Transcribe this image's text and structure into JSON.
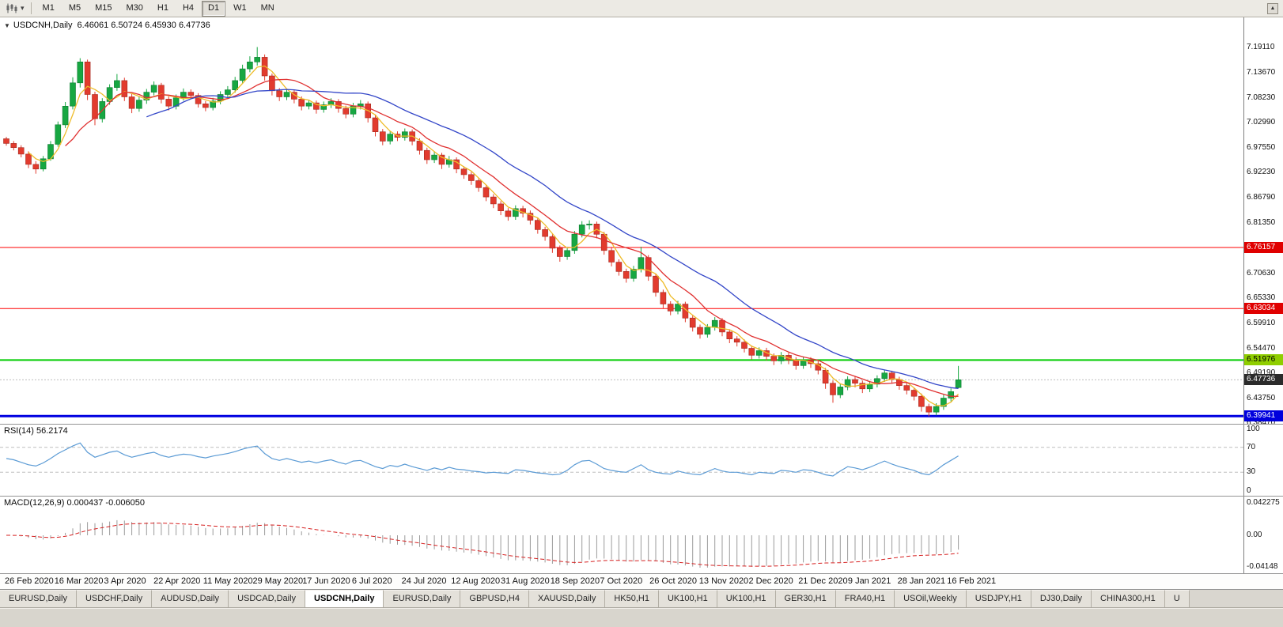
{
  "toolbar": {
    "chart_icon": "candlestick-chart",
    "caret": "▾",
    "timeframes": [
      "M1",
      "M5",
      "M15",
      "M30",
      "H1",
      "H4",
      "D1",
      "W1",
      "MN"
    ],
    "active_timeframe": "D1",
    "mini_button_glyph": "▲"
  },
  "chart_header": {
    "caret": "▼",
    "symbol": "USDCNH,Daily",
    "ohlc": "6.46061 6.50724 6.45930 6.47736"
  },
  "price_axis": {
    "labels": [
      {
        "text": "7.19110",
        "value": 7.1911
      },
      {
        "text": "7.13670",
        "value": 7.1367
      },
      {
        "text": "7.08230",
        "value": 7.0823
      },
      {
        "text": "7.02990",
        "value": 7.0299
      },
      {
        "text": "6.97550",
        "value": 6.9755
      },
      {
        "text": "6.92230",
        "value": 6.9223
      },
      {
        "text": "6.86790",
        "value": 6.8679
      },
      {
        "text": "6.81350",
        "value": 6.8135
      },
      {
        "text": "6.70630",
        "value": 6.7063
      },
      {
        "text": "6.65330",
        "value": 6.6533
      },
      {
        "text": "6.59910",
        "value": 6.5991
      },
      {
        "text": "6.54470",
        "value": 6.5447
      },
      {
        "text": "6.49190",
        "value": 6.4919
      },
      {
        "text": "6.43750",
        "value": 6.4375
      },
      {
        "text": "6.38470",
        "value": 6.3847
      }
    ],
    "tags": [
      {
        "text": "6.76157",
        "value": 6.76157,
        "bg": "#e00000",
        "fg": "#ffffff"
      },
      {
        "text": "6.63034",
        "value": 6.63034,
        "bg": "#e00000",
        "fg": "#ffffff"
      },
      {
        "text": "6.51976",
        "value": 6.51976,
        "bg": "#8fce00",
        "fg": "#000000"
      },
      {
        "text": "6.47736",
        "value": 6.47736,
        "bg": "#2b2b2b",
        "fg": "#ffffff"
      },
      {
        "text": "6.39941",
        "value": 6.39941,
        "bg": "#0000dd",
        "fg": "#ffffff"
      }
    ]
  },
  "rsi_panel": {
    "label": "RSI(14) 56.2174",
    "axis": [
      {
        "text": "100",
        "value": 100
      },
      {
        "text": "70",
        "value": 70
      },
      {
        "text": "30",
        "value": 30
      },
      {
        "text": "0",
        "value": 0
      }
    ]
  },
  "macd_panel": {
    "label": "MACD(12,26,9) 0.000437 -0.006050",
    "axis_labels": [
      {
        "text": "0.042275",
        "role": "max"
      },
      {
        "text": "0.00",
        "role": "zero"
      },
      {
        "text": "-0.04148",
        "role": "min"
      }
    ]
  },
  "tabs": {
    "active_index": 4,
    "items": [
      "EURUSD,Daily",
      "USDCHF,Daily",
      "AUDUSD,Daily",
      "USDCAD,Daily",
      "USDCNH,Daily",
      "EURUSD,Daily",
      "GBPUSD,H4",
      "XAUUSD,Daily",
      "HK50,H1",
      "UK100,H1",
      "UK100,H1",
      "GER30,H1",
      "FRA40,H1",
      "USOil,Weekly",
      "USDJPY,H1",
      "DJ30,Daily",
      "CHINA300,H1",
      "U"
    ]
  },
  "chart_data": [
    {
      "type": "candlestick",
      "title": "USDCNH,Daily",
      "x_dates": [
        "26 Feb 2020",
        "16 Mar 2020",
        "3 Apr 2020",
        "22 Apr 2020",
        "11 May 2020",
        "29 May 2020",
        "17 Jun 2020",
        "6 Jul 2020",
        "24 Jul 2020",
        "12 Aug 2020",
        "31 Aug 2020",
        "18 Sep 2020",
        "7 Oct 2020",
        "26 Oct 2020",
        "13 Nov 2020",
        "2 Dec 2020",
        "21 Dec 2020",
        "9 Jan 2021",
        "28 Jan 2021",
        "16 Feb 2021"
      ],
      "ylim": [
        6.3812,
        7.2556
      ],
      "last_candle": {
        "open": 6.46061,
        "high": 6.50724,
        "low": 6.4593,
        "close": 6.47736
      },
      "levels": [
        {
          "value": 6.76157,
          "color": "#ff0000",
          "width": 1
        },
        {
          "value": 6.63034,
          "color": "#ff0000",
          "width": 1
        },
        {
          "value": 6.51976,
          "color": "#00cc00",
          "width": 2
        },
        {
          "value": 6.47736,
          "color": "#bdbdbd",
          "width": 1,
          "dash": "2 2"
        },
        {
          "value": 6.39941,
          "color": "#0000e0",
          "width": 3
        }
      ],
      "moving_averages": [
        {
          "period": 4,
          "color": "#eebc2a"
        },
        {
          "period": 9,
          "color": "#e03030"
        },
        {
          "period": 20,
          "color": "#3346c8"
        }
      ],
      "colors": {
        "up": "#17a742",
        "up_stroke": "#0e7a30",
        "down": "#e23b2e",
        "down_stroke": "#a32a20"
      },
      "candles": [
        [
          6.995,
          6.999,
          6.98,
          6.985
        ],
        [
          6.985,
          6.99,
          6.97,
          6.976
        ],
        [
          6.976,
          6.981,
          6.955,
          6.962
        ],
        [
          6.962,
          6.968,
          6.932,
          6.94
        ],
        [
          6.94,
          6.947,
          6.92,
          6.93
        ],
        [
          6.93,
          6.958,
          6.925,
          6.952
        ],
        [
          6.952,
          6.99,
          6.948,
          6.983
        ],
        [
          6.983,
          7.032,
          6.978,
          7.025
        ],
        [
          7.025,
          7.074,
          7.018,
          7.065
        ],
        [
          7.065,
          7.127,
          7.058,
          7.115
        ],
        [
          7.115,
          7.168,
          7.105,
          7.16
        ],
        [
          7.16,
          7.165,
          7.078,
          7.09
        ],
        [
          7.09,
          7.096,
          7.024,
          7.038
        ],
        [
          7.038,
          7.082,
          7.03,
          7.075
        ],
        [
          7.075,
          7.112,
          7.068,
          7.105
        ],
        [
          7.105,
          7.134,
          7.098,
          7.12
        ],
        [
          7.12,
          7.126,
          7.076,
          7.085
        ],
        [
          7.085,
          7.091,
          7.05,
          7.06
        ],
        [
          7.06,
          7.085,
          7.053,
          7.078
        ],
        [
          7.078,
          7.102,
          7.07,
          7.095
        ],
        [
          7.095,
          7.118,
          7.088,
          7.11
        ],
        [
          7.11,
          7.115,
          7.071,
          7.08
        ],
        [
          7.08,
          7.086,
          7.056,
          7.065
        ],
        [
          7.065,
          7.09,
          7.058,
          7.083
        ],
        [
          7.083,
          7.103,
          7.077,
          7.095
        ],
        [
          7.095,
          7.101,
          7.08,
          7.088
        ],
        [
          7.088,
          7.093,
          7.062,
          7.07
        ],
        [
          7.07,
          7.076,
          7.054,
          7.062
        ],
        [
          7.062,
          7.083,
          7.056,
          7.076
        ],
        [
          7.076,
          7.097,
          7.069,
          7.09
        ],
        [
          7.09,
          7.108,
          7.083,
          7.1
        ],
        [
          7.1,
          7.128,
          7.094,
          7.12
        ],
        [
          7.12,
          7.154,
          7.113,
          7.145
        ],
        [
          7.145,
          7.172,
          7.138,
          7.16
        ],
        [
          7.16,
          7.192,
          7.152,
          7.17
        ],
        [
          7.17,
          7.176,
          7.12,
          7.13
        ],
        [
          7.13,
          7.135,
          7.088,
          7.098
        ],
        [
          7.098,
          7.104,
          7.076,
          7.085
        ],
        [
          7.085,
          7.102,
          7.078,
          7.095
        ],
        [
          7.095,
          7.1,
          7.071,
          7.08
        ],
        [
          7.08,
          7.086,
          7.056,
          7.065
        ],
        [
          7.065,
          7.079,
          7.058,
          7.072
        ],
        [
          7.072,
          7.077,
          7.049,
          7.058
        ],
        [
          7.058,
          7.075,
          7.051,
          7.068
        ],
        [
          7.068,
          7.082,
          7.061,
          7.075
        ],
        [
          7.075,
          7.08,
          7.051,
          7.06
        ],
        [
          7.06,
          7.066,
          7.039,
          7.048
        ],
        [
          7.048,
          7.072,
          7.041,
          7.065
        ],
        [
          7.065,
          7.078,
          7.058,
          7.07
        ],
        [
          7.07,
          7.075,
          7.03,
          7.04
        ],
        [
          7.04,
          7.046,
          7.0,
          7.01
        ],
        [
          7.01,
          7.016,
          6.981,
          6.99
        ],
        [
          6.99,
          7.012,
          6.983,
          7.005
        ],
        [
          7.005,
          7.011,
          6.99,
          6.998
        ],
        [
          6.998,
          7.017,
          6.991,
          7.01
        ],
        [
          7.01,
          7.015,
          6.981,
          6.99
        ],
        [
          6.99,
          6.996,
          6.961,
          6.97
        ],
        [
          6.97,
          6.976,
          6.941,
          6.95
        ],
        [
          6.95,
          6.967,
          6.943,
          6.96
        ],
        [
          6.96,
          6.965,
          6.93,
          6.94
        ],
        [
          6.94,
          6.958,
          6.933,
          6.95
        ],
        [
          6.95,
          6.955,
          6.921,
          6.93
        ],
        [
          6.93,
          6.936,
          6.909,
          6.918
        ],
        [
          6.918,
          6.924,
          6.896,
          6.905
        ],
        [
          6.905,
          6.911,
          6.881,
          6.89
        ],
        [
          6.89,
          6.896,
          6.861,
          6.87
        ],
        [
          6.87,
          6.876,
          6.846,
          6.855
        ],
        [
          6.855,
          6.861,
          6.831,
          6.84
        ],
        [
          6.84,
          6.846,
          6.819,
          6.828
        ],
        [
          6.828,
          6.852,
          6.821,
          6.845
        ],
        [
          6.845,
          6.851,
          6.826,
          6.835
        ],
        [
          6.835,
          6.841,
          6.811,
          6.82
        ],
        [
          6.82,
          6.826,
          6.791,
          6.8
        ],
        [
          6.8,
          6.806,
          6.776,
          6.785
        ],
        [
          6.785,
          6.79,
          6.75,
          6.76
        ],
        [
          6.76,
          6.766,
          6.731,
          6.742
        ],
        [
          6.742,
          6.762,
          6.735,
          6.755
        ],
        [
          6.755,
          6.797,
          6.748,
          6.79
        ],
        [
          6.79,
          6.818,
          6.783,
          6.81
        ],
        [
          6.81,
          6.82,
          6.8,
          6.812
        ],
        [
          6.812,
          6.817,
          6.781,
          6.79
        ],
        [
          6.79,
          6.795,
          6.746,
          6.755
        ],
        [
          6.755,
          6.761,
          6.721,
          6.73
        ],
        [
          6.73,
          6.736,
          6.701,
          6.71
        ],
        [
          6.71,
          6.716,
          6.686,
          6.695
        ],
        [
          6.695,
          6.722,
          6.688,
          6.715
        ],
        [
          6.715,
          6.763,
          6.708,
          6.74
        ],
        [
          6.74,
          6.745,
          6.69,
          6.7
        ],
        [
          6.7,
          6.705,
          6.656,
          6.665
        ],
        [
          6.665,
          6.671,
          6.631,
          6.64
        ],
        [
          6.64,
          6.646,
          6.616,
          6.625
        ],
        [
          6.625,
          6.647,
          6.618,
          6.64
        ],
        [
          6.64,
          6.645,
          6.601,
          6.61
        ],
        [
          6.61,
          6.616,
          6.581,
          6.59
        ],
        [
          6.59,
          6.596,
          6.566,
          6.575
        ],
        [
          6.575,
          6.597,
          6.568,
          6.59
        ],
        [
          6.59,
          6.612,
          6.583,
          6.605
        ],
        [
          6.605,
          6.61,
          6.571,
          6.58
        ],
        [
          6.58,
          6.586,
          6.556,
          6.565
        ],
        [
          6.565,
          6.571,
          6.549,
          6.558
        ],
        [
          6.558,
          6.564,
          6.536,
          6.545
        ],
        [
          6.545,
          6.551,
          6.521,
          6.53
        ],
        [
          6.53,
          6.547,
          6.523,
          6.54
        ],
        [
          6.54,
          6.546,
          6.519,
          6.528
        ],
        [
          6.528,
          6.534,
          6.509,
          6.518
        ],
        [
          6.518,
          6.537,
          6.511,
          6.53
        ],
        [
          6.53,
          6.536,
          6.511,
          6.52
        ],
        [
          6.52,
          6.526,
          6.499,
          6.508
        ],
        [
          6.508,
          6.527,
          6.501,
          6.52
        ],
        [
          6.52,
          6.526,
          6.503,
          6.512
        ],
        [
          6.512,
          6.518,
          6.489,
          6.498
        ],
        [
          6.498,
          6.503,
          6.458,
          6.47
        ],
        [
          6.47,
          6.476,
          6.428,
          6.445
        ],
        [
          6.445,
          6.469,
          6.438,
          6.462
        ],
        [
          6.462,
          6.485,
          6.455,
          6.478
        ],
        [
          6.478,
          6.484,
          6.461,
          6.47
        ],
        [
          6.47,
          6.476,
          6.449,
          6.458
        ],
        [
          6.458,
          6.475,
          6.451,
          6.468
        ],
        [
          6.468,
          6.487,
          6.461,
          6.48
        ],
        [
          6.48,
          6.499,
          6.473,
          6.492
        ],
        [
          6.492,
          6.497,
          6.469,
          6.478
        ],
        [
          6.478,
          6.484,
          6.456,
          6.465
        ],
        [
          6.465,
          6.471,
          6.446,
          6.455
        ],
        [
          6.455,
          6.461,
          6.433,
          6.442
        ],
        [
          6.442,
          6.448,
          6.409,
          6.42
        ],
        [
          6.42,
          6.426,
          6.399,
          6.408
        ],
        [
          6.408,
          6.427,
          6.401,
          6.42
        ],
        [
          6.42,
          6.445,
          6.413,
          6.438
        ],
        [
          6.438,
          6.459,
          6.431,
          6.452
        ],
        [
          6.4606,
          6.5072,
          6.4593,
          6.4774
        ]
      ]
    },
    {
      "type": "line",
      "name": "RSI(14)",
      "period": 14,
      "last_value": 56.2174,
      "ylim": [
        0,
        100
      ],
      "levels": [
        70,
        30
      ],
      "color": "#5b9bd5",
      "values": [
        52,
        50,
        46,
        42,
        40,
        45,
        52,
        60,
        66,
        72,
        77,
        62,
        54,
        58,
        62,
        64,
        58,
        54,
        57,
        60,
        62,
        57,
        54,
        57,
        59,
        58,
        55,
        53,
        56,
        58,
        60,
        63,
        67,
        70,
        72,
        60,
        52,
        49,
        52,
        49,
        46,
        48,
        45,
        48,
        50,
        46,
        43,
        48,
        49,
        44,
        39,
        36,
        41,
        39,
        43,
        39,
        36,
        33,
        37,
        34,
        38,
        35,
        34,
        32,
        31,
        29,
        30,
        29,
        28,
        34,
        33,
        31,
        29,
        28,
        26,
        27,
        33,
        42,
        48,
        49,
        43,
        36,
        33,
        31,
        30,
        36,
        42,
        34,
        30,
        28,
        27,
        32,
        29,
        27,
        26,
        31,
        36,
        32,
        30,
        30,
        28,
        26,
        30,
        29,
        28,
        33,
        32,
        30,
        34,
        33,
        30,
        26,
        24,
        32,
        39,
        37,
        34,
        38,
        43,
        48,
        43,
        39,
        36,
        33,
        28,
        26,
        33,
        42,
        49,
        56.2
      ]
    },
    {
      "type": "bar",
      "name": "MACD(12,26,9)",
      "fast": 12,
      "slow": 26,
      "signal_period": 9,
      "last_macd": 0.000437,
      "last_signal": -0.00605,
      "histogram_color": "#9b9b9b",
      "signal_color": "#d62020",
      "axis_max_label": "0.042275",
      "axis_min_label": "-0.04148"
    }
  ]
}
